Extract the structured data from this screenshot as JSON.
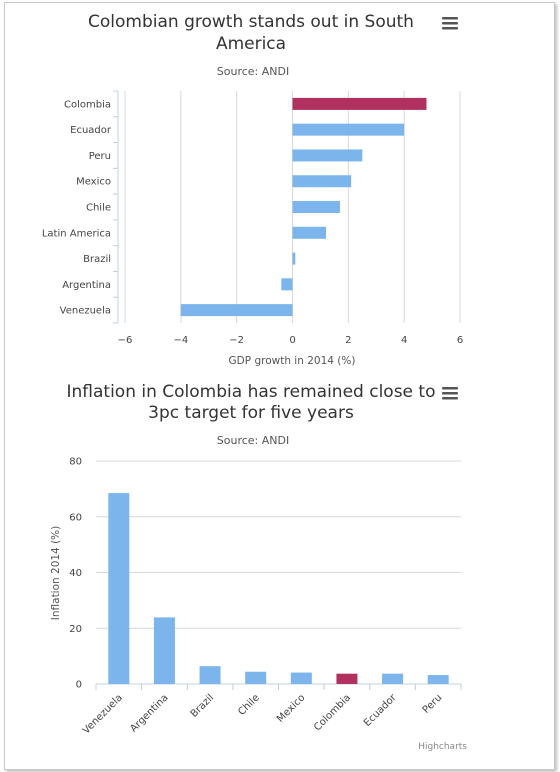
{
  "chart_data": [
    {
      "type": "bar",
      "orientation": "horizontal",
      "title_line1": "Colombian growth stands out in South",
      "title_line2": "America",
      "subtitle": "Source: ANDI",
      "xlabel": "GDP growth in 2014 (%)",
      "ylabel": "",
      "categories": [
        "Colombia",
        "Ecuador",
        "Peru",
        "Mexico",
        "Chile",
        "Latin America",
        "Brazil",
        "Argentina",
        "Venezuela"
      ],
      "values": [
        4.8,
        4.0,
        2.5,
        2.1,
        1.7,
        1.2,
        0.1,
        -0.4,
        -4.0
      ],
      "highlight_index": 0,
      "xlim": [
        -6,
        6
      ],
      "ticks": [
        -6,
        -4,
        -2,
        0,
        2,
        4,
        6
      ],
      "tick_labels": [
        "−6",
        "−4",
        "−2",
        "0",
        "2",
        "4",
        "6"
      ],
      "grid": true,
      "colors": {
        "bar": "#7cb5ec",
        "highlight": "#b03060"
      }
    },
    {
      "type": "bar",
      "orientation": "vertical",
      "title_line1": "Inflation in Colombia has remained close to",
      "title_line2": "3pc target for five years",
      "subtitle": "Source: ANDI",
      "xlabel": "",
      "ylabel": "Inflation 2014 (%)",
      "categories": [
        "Venezuela",
        "Argentina",
        "Brazil",
        "Chile",
        "Mexico",
        "Colombia",
        "Ecuador",
        "Peru"
      ],
      "values": [
        68.5,
        23.9,
        6.4,
        4.4,
        4.1,
        3.7,
        3.7,
        3.2
      ],
      "highlight_index": 5,
      "ylim": [
        0,
        80
      ],
      "ticks": [
        0,
        20,
        40,
        60,
        80
      ],
      "tick_labels": [
        "0",
        "20",
        "40",
        "60",
        "80"
      ],
      "grid": true,
      "colors": {
        "bar": "#7cb5ec",
        "highlight": "#b03060"
      }
    }
  ],
  "credit": "Highcharts",
  "icons": {
    "menu": "hamburger-menu-icon"
  }
}
